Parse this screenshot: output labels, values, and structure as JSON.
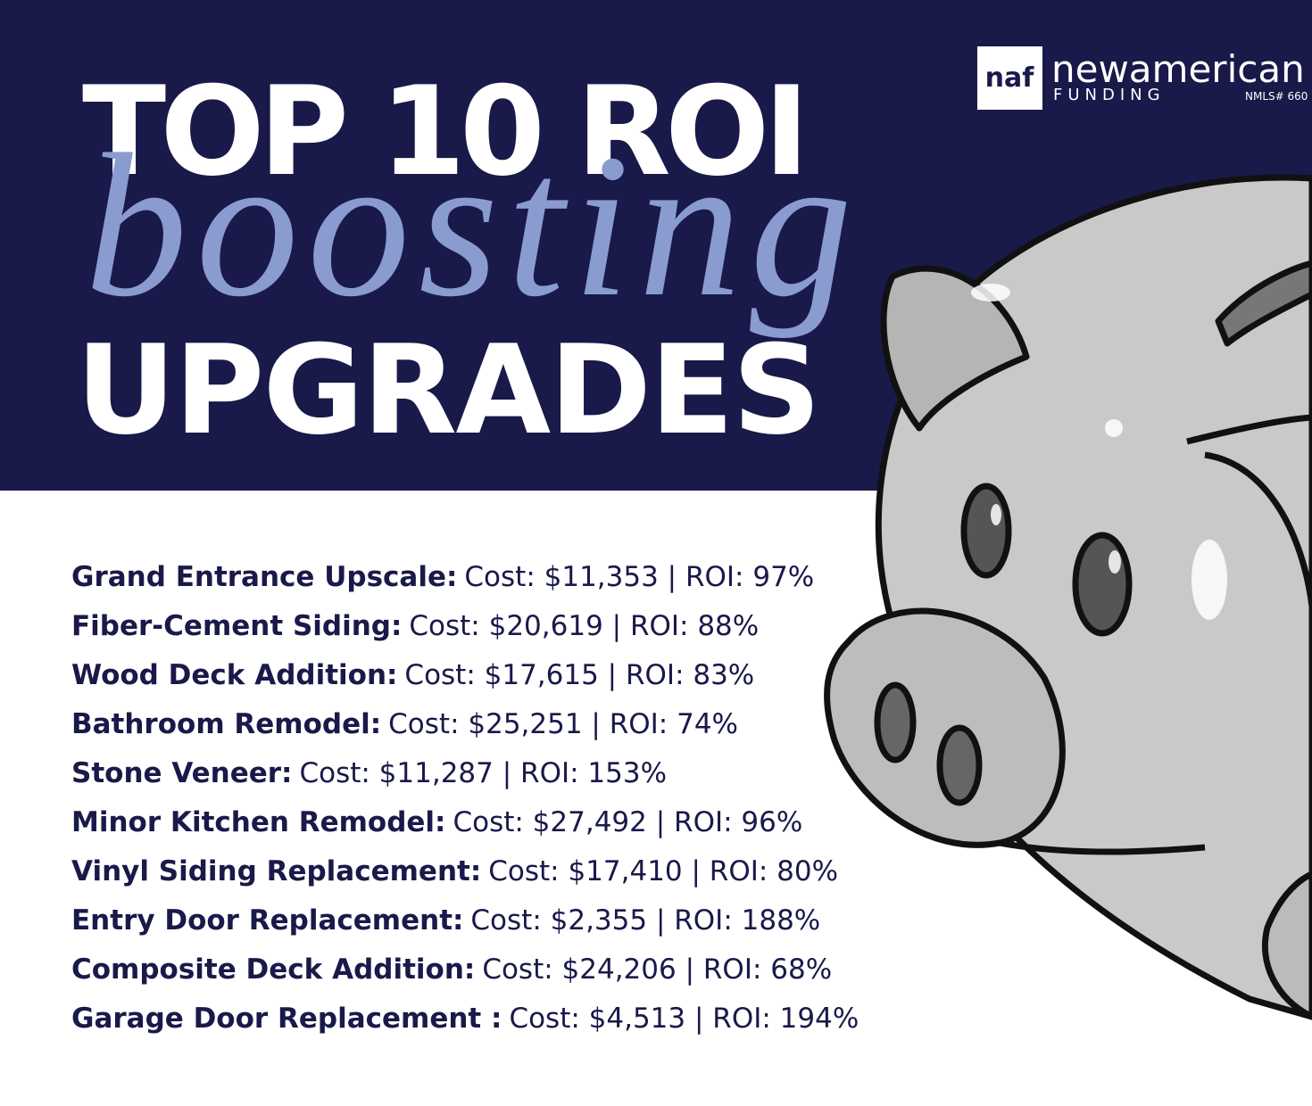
{
  "logo": {
    "mark": "naf",
    "name": "newamerican",
    "sub": "FUNDING",
    "nmls": "NMLS# 660"
  },
  "title": {
    "line1": "TOP 10 ROI",
    "script": "boosting",
    "line2": "UPGRADES"
  },
  "items": [
    {
      "name": "Grand Entrance Upscale:",
      "detail": "Cost: $11,353 | ROI: 97%"
    },
    {
      "name": "Fiber-Cement Siding:",
      "detail": "Cost: $20,619 | ROI: 88%"
    },
    {
      "name": "Wood Deck Addition:",
      "detail": "Cost: $17,615 | ROI: 83%"
    },
    {
      "name": "Bathroom Remodel:",
      "detail": "Cost: $25,251 | ROI: 74%"
    },
    {
      "name": "Stone Veneer:",
      "detail": "Cost: $11,287 | ROI: 153%"
    },
    {
      "name": "Minor Kitchen Remodel:",
      "detail": "Cost: $27,492 | ROI: 96%"
    },
    {
      "name": "Vinyl Siding Replacement:",
      "detail": "Cost: $17,410 | ROI: 80%"
    },
    {
      "name": "Entry Door Replacement:",
      "detail": "Cost: $2,355 | ROI: 188%"
    },
    {
      "name": "Composite Deck Addition:",
      "detail": "Cost: $24,206 | ROI: 68%"
    },
    {
      "name": "Garage Door Replacement :",
      "detail": "Cost: $4,513 | ROI: 194%"
    }
  ]
}
